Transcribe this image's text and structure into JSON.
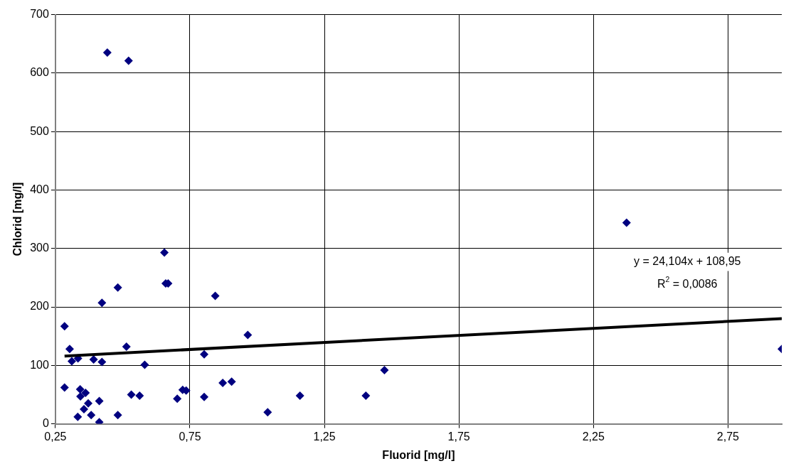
{
  "chart_data": {
    "type": "scatter",
    "xlabel": "Fluorid [mg/l]",
    "ylabel": "Chlorid [mg/l]",
    "xlim": [
      0.25,
      2.95
    ],
    "xticks": [
      {
        "value": 0.25,
        "label": "0,25"
      },
      {
        "value": 0.75,
        "label": "0,75"
      },
      {
        "value": 1.25,
        "label": "1,25"
      },
      {
        "value": 1.75,
        "label": "1,75"
      },
      {
        "value": 2.25,
        "label": "2,25"
      },
      {
        "value": 2.75,
        "label": "2,75"
      }
    ],
    "ylim": [
      0,
      700
    ],
    "yticks": [
      0,
      100,
      200,
      300,
      400,
      500,
      600,
      700
    ],
    "grid": true,
    "marker": "diamond",
    "series": [
      {
        "type": "scatter",
        "color": "#000080",
        "x": [
          0.284,
          0.303,
          0.311,
          0.334,
          0.392,
          0.423,
          0.284,
          0.342,
          0.362,
          0.343,
          0.372,
          0.356,
          0.333,
          0.383,
          0.413,
          0.413,
          0.482,
          0.532,
          0.563,
          0.582,
          0.514,
          0.482,
          0.423,
          0.669,
          0.66,
          0.844,
          0.803,
          0.723,
          0.736,
          0.703,
          0.803,
          0.872,
          0.905,
          0.965,
          1.039,
          0.443,
          0.522,
          0.655,
          1.159,
          1.404,
          1.473,
          2.373,
          2.95
        ],
        "values": [
          167,
          128,
          107,
          112,
          110,
          106,
          62,
          59,
          53,
          47,
          35,
          25,
          12,
          15,
          39,
          3,
          15,
          50,
          48,
          101,
          132,
          233,
          207,
          240,
          240,
          219,
          119,
          58,
          57,
          43,
          46,
          70,
          72,
          152,
          20,
          635,
          621,
          293,
          48,
          48,
          92,
          344,
          128
        ]
      },
      {
        "type": "line",
        "color": "#000000",
        "marker": "none",
        "line_style": "solid",
        "x": [
          0.284,
          2.95
        ],
        "values": [
          116,
          180
        ]
      }
    ],
    "annotations": [
      "y = 24,104x + 108,95",
      "R$^{2}$ = 0,0086"
    ]
  }
}
